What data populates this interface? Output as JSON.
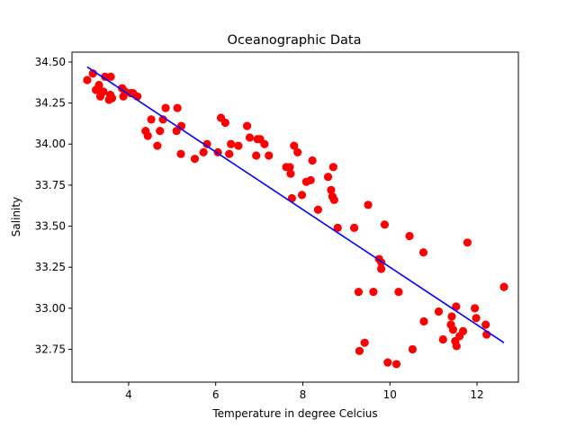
{
  "chart_data": {
    "type": "scatter",
    "title": "Oceanographic Data",
    "xlabel": "Temperature in degree Celcius",
    "ylabel": "Salinity",
    "xlim": [
      2.7,
      12.95
    ],
    "ylim": [
      32.55,
      34.56
    ],
    "xticks": [
      4,
      6,
      8,
      10,
      12
    ],
    "xtick_labels": [
      "4",
      "6",
      "8",
      "10",
      "12"
    ],
    "yticks": [
      32.75,
      33.0,
      33.25,
      33.5,
      33.75,
      34.0,
      34.25,
      34.5
    ],
    "ytick_labels": [
      "32.75",
      "33.00",
      "33.25",
      "33.50",
      "33.75",
      "34.00",
      "34.25",
      "34.50"
    ],
    "grid": false,
    "series": [
      {
        "kind": "scatter",
        "color": "#ff0000",
        "points": [
          [
            3.05,
            34.39
          ],
          [
            3.18,
            34.43
          ],
          [
            3.25,
            34.33
          ],
          [
            3.32,
            34.36
          ],
          [
            3.35,
            34.29
          ],
          [
            3.42,
            34.32
          ],
          [
            3.46,
            34.41
          ],
          [
            3.55,
            34.27
          ],
          [
            3.58,
            34.3
          ],
          [
            3.59,
            34.41
          ],
          [
            3.62,
            34.28
          ],
          [
            3.85,
            34.34
          ],
          [
            3.88,
            34.29
          ],
          [
            3.92,
            34.32
          ],
          [
            4.05,
            34.31
          ],
          [
            4.1,
            34.31
          ],
          [
            4.2,
            34.29
          ],
          [
            4.39,
            34.08
          ],
          [
            4.44,
            34.05
          ],
          [
            4.52,
            34.15
          ],
          [
            4.66,
            33.99
          ],
          [
            4.72,
            34.08
          ],
          [
            4.79,
            34.15
          ],
          [
            4.85,
            34.22
          ],
          [
            5.1,
            34.08
          ],
          [
            5.12,
            34.22
          ],
          [
            5.2,
            33.94
          ],
          [
            5.21,
            34.11
          ],
          [
            5.52,
            33.91
          ],
          [
            5.72,
            33.95
          ],
          [
            5.8,
            34.0
          ],
          [
            6.05,
            33.95
          ],
          [
            6.12,
            34.16
          ],
          [
            6.22,
            34.13
          ],
          [
            6.31,
            33.94
          ],
          [
            6.35,
            34.0
          ],
          [
            6.52,
            33.99
          ],
          [
            6.72,
            34.11
          ],
          [
            6.78,
            34.04
          ],
          [
            6.93,
            33.93
          ],
          [
            6.96,
            34.03
          ],
          [
            7.02,
            34.03
          ],
          [
            7.12,
            34.0
          ],
          [
            7.22,
            33.93
          ],
          [
            7.62,
            33.86
          ],
          [
            7.7,
            33.86
          ],
          [
            7.72,
            33.82
          ],
          [
            7.75,
            33.67
          ],
          [
            7.8,
            33.99
          ],
          [
            7.88,
            33.95
          ],
          [
            7.98,
            33.69
          ],
          [
            8.08,
            33.77
          ],
          [
            8.18,
            33.78
          ],
          [
            8.22,
            33.9
          ],
          [
            8.35,
            33.6
          ],
          [
            8.58,
            33.8
          ],
          [
            8.65,
            33.72
          ],
          [
            8.68,
            33.68
          ],
          [
            8.7,
            33.86
          ],
          [
            8.72,
            33.66
          ],
          [
            8.8,
            33.49
          ],
          [
            9.18,
            33.49
          ],
          [
            9.28,
            33.1
          ],
          [
            9.3,
            32.74
          ],
          [
            9.42,
            32.79
          ],
          [
            9.5,
            33.63
          ],
          [
            9.62,
            33.1
          ],
          [
            9.75,
            33.3
          ],
          [
            9.8,
            33.24
          ],
          [
            9.8,
            33.28
          ],
          [
            9.88,
            33.51
          ],
          [
            9.95,
            32.67
          ],
          [
            10.15,
            32.66
          ],
          [
            10.2,
            33.1
          ],
          [
            10.45,
            33.44
          ],
          [
            10.52,
            32.75
          ],
          [
            10.77,
            33.34
          ],
          [
            10.78,
            32.92
          ],
          [
            11.12,
            32.98
          ],
          [
            11.22,
            32.81
          ],
          [
            11.4,
            32.9
          ],
          [
            11.42,
            32.95
          ],
          [
            11.45,
            32.87
          ],
          [
            11.5,
            32.8
          ],
          [
            11.52,
            33.01
          ],
          [
            11.53,
            32.77
          ],
          [
            11.6,
            32.83
          ],
          [
            11.68,
            32.86
          ],
          [
            11.78,
            33.4
          ],
          [
            11.95,
            33.0
          ],
          [
            11.98,
            32.94
          ],
          [
            12.2,
            32.9
          ],
          [
            12.22,
            32.84
          ],
          [
            12.62,
            33.13
          ]
        ]
      },
      {
        "kind": "line",
        "color": "#0000ff",
        "name": "",
        "points": [
          [
            3.05,
            34.47
          ],
          [
            12.62,
            32.79
          ]
        ]
      }
    ]
  }
}
